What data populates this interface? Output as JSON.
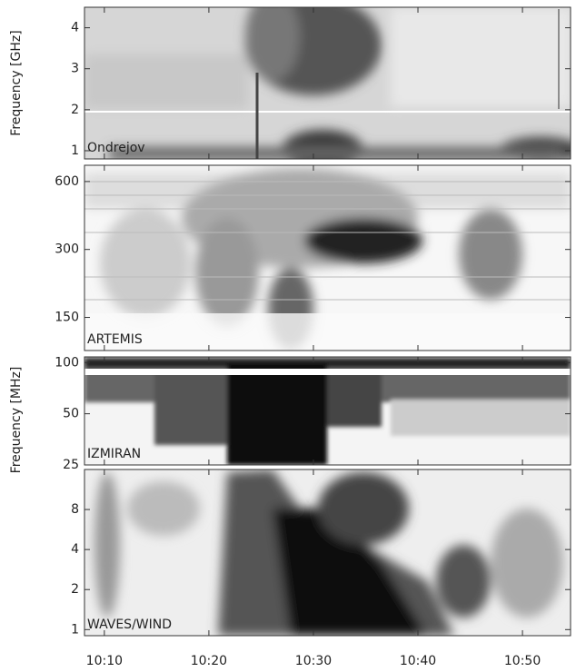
{
  "chart_data": [
    {
      "type": "spectrogram",
      "label": "Ondrejov",
      "ylabel": "Frequency [GHz]",
      "log": false,
      "ylim": [
        0.8,
        4.5
      ],
      "yticks": [
        1,
        2,
        3,
        4
      ],
      "xlim": [
        608.1,
        654.6
      ]
    },
    {
      "type": "spectrogram",
      "label": "ARTEMIS",
      "log": true,
      "ylim": [
        107,
        708
      ],
      "yticks": [
        150,
        300,
        600
      ],
      "xlim": [
        608.1,
        654.6
      ]
    },
    {
      "type": "spectrogram",
      "label": "IZMIRAN",
      "ylabel": "Frequency [MHz]",
      "log": true,
      "ylim": [
        25,
        108
      ],
      "yticks": [
        25,
        50,
        100
      ],
      "xlim": [
        608.1,
        654.6
      ]
    },
    {
      "type": "spectrogram",
      "label": "WAVES/WIND",
      "log": true,
      "ylim": [
        0.9,
        16
      ],
      "yticks": [
        1,
        2,
        4,
        8
      ],
      "xlim": [
        608.1,
        654.6
      ],
      "xticks": [
        {
          "value": 610,
          "label": "10:10"
        },
        {
          "value": 620,
          "label": "10:20"
        },
        {
          "value": 630,
          "label": "10:30"
        },
        {
          "value": 640,
          "label": "10:40"
        },
        {
          "value": 650,
          "label": "10:50"
        }
      ]
    }
  ]
}
